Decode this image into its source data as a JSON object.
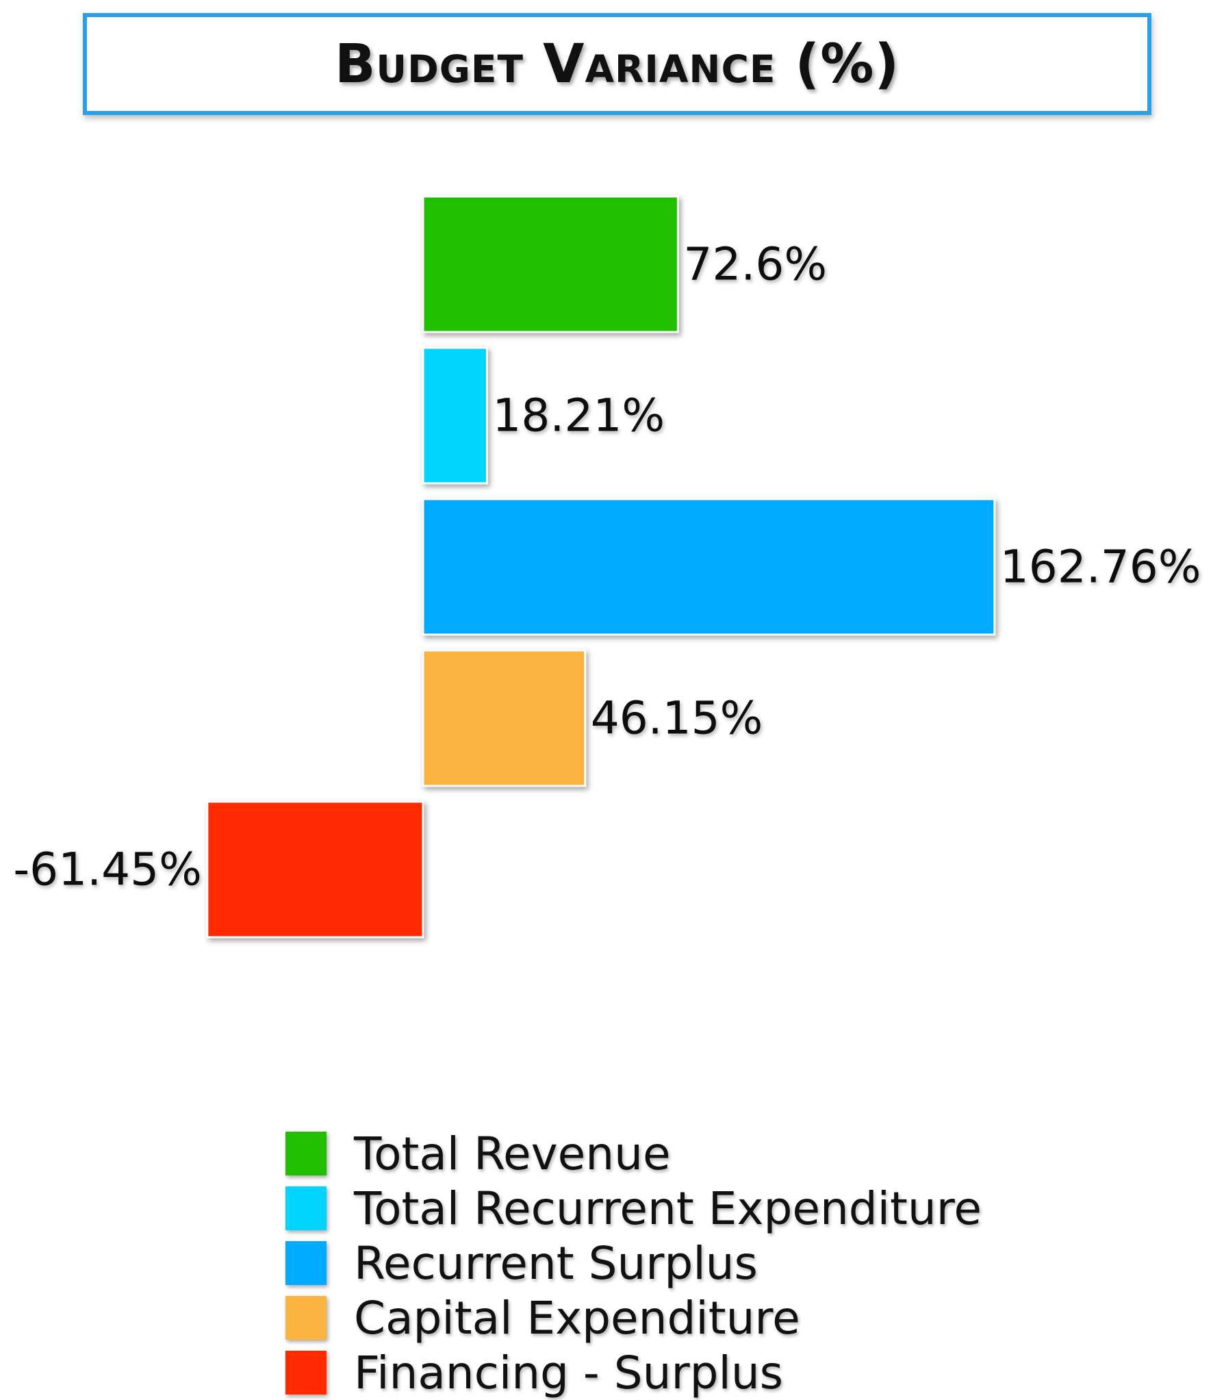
{
  "chart_data": {
    "type": "bar",
    "orientation": "horizontal",
    "title": "Budget Variance (%)",
    "categories": [
      "Total Revenue",
      "Total Recurrent Expenditure",
      "Recurrent Surplus",
      "Capital Expenditure",
      "Financing - Surplus"
    ],
    "values": [
      72.6,
      18.21,
      162.76,
      46.15,
      -61.45
    ],
    "data_labels": [
      "72.6%",
      "18.21%",
      "162.76%",
      "46.15%",
      "-61.45%"
    ],
    "colors": [
      "#22bf00",
      "#00d4ff",
      "#00aaff",
      "#fbb341",
      "#ff2a00"
    ],
    "xlim": [
      -61.45,
      162.76
    ],
    "grid": false,
    "legend_position": "bottom"
  }
}
